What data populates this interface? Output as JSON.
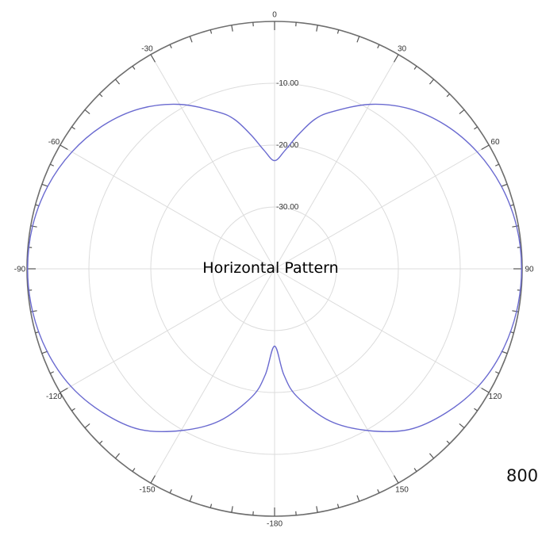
{
  "frequency_label": "800",
  "chart_data": {
    "type": "polar-line",
    "title": "Horizontal Pattern",
    "angle_unit": "degrees",
    "angle_ticks": [
      0,
      30,
      60,
      90,
      120,
      150,
      -180,
      -150,
      -120,
      -90,
      -60,
      -30
    ],
    "angle_tick_labels": [
      "0",
      "30",
      "60",
      "90",
      "120",
      "150",
      "-180",
      "-150",
      "-120",
      "-90",
      "-60",
      "-30"
    ],
    "radial_range_db": [
      -40,
      0
    ],
    "ring_values": [
      -30,
      -20,
      -10
    ],
    "ring_labels": [
      "-30.00",
      "-20.00",
      "-10.00"
    ],
    "series": [
      {
        "color": "#6a6ad0",
        "angle": [
          0,
          5,
          10,
          15,
          20,
          30,
          40,
          50,
          60,
          70,
          80,
          90,
          100,
          110,
          120,
          130,
          140,
          150,
          160,
          170,
          175,
          180,
          185,
          190,
          200,
          210,
          220,
          230,
          240,
          250,
          260,
          270,
          280,
          290,
          300,
          310,
          320,
          330,
          340,
          345,
          350,
          355
        ],
        "value_db": [
          -22.5,
          -20.8,
          -18.0,
          -15.0,
          -13.0,
          -9.3,
          -6.2,
          -3.9,
          -2.2,
          -1.0,
          -0.3,
          -0.1,
          -0.3,
          -0.9,
          -2.0,
          -3.8,
          -6.1,
          -9.8,
          -13.8,
          -19.0,
          -22.8,
          -27.5,
          -22.8,
          -19.0,
          -13.8,
          -9.8,
          -6.1,
          -3.8,
          -2.0,
          -0.9,
          -0.3,
          -0.1,
          -0.3,
          -1.0,
          -2.2,
          -3.9,
          -6.2,
          -9.3,
          -13.0,
          -15.0,
          -18.0,
          -20.8
        ]
      }
    ],
    "grid": true
  }
}
